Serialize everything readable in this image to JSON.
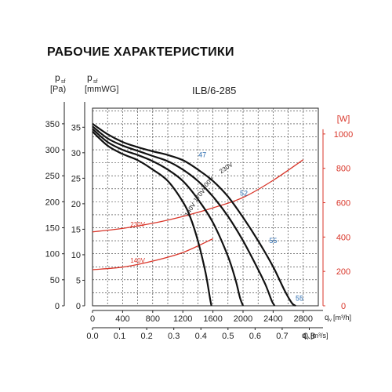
{
  "title": "РАБОЧИЕ ХАРАКТЕРИСТИКИ",
  "chart_data": {
    "type": "line",
    "model": "ILB/6-285",
    "left_axis_pa": {
      "label_main": "p",
      "label_sub": "sf",
      "unit": "[Pa)",
      "ticks": [
        0,
        50,
        100,
        150,
        200,
        250,
        300,
        350
      ],
      "range": [
        0,
        380
      ]
    },
    "left_axis_mmwg": {
      "label_main": "p",
      "label_sub": "sf",
      "unit": "[mmWG]",
      "ticks": [
        0,
        5,
        10,
        15,
        20,
        25,
        30,
        35
      ]
    },
    "right_axis_power": {
      "unit": "[W]",
      "ticks": [
        0,
        200,
        400,
        600,
        800,
        1000
      ],
      "range": [
        0,
        1000
      ]
    },
    "x_axis_m3h": {
      "label": "q",
      "label_sub": "v",
      "unit": "[m³/h]",
      "ticks": [
        0,
        400,
        800,
        1200,
        1600,
        2000,
        2400,
        2800
      ],
      "range": [
        0,
        3000
      ]
    },
    "x_axis_m3s": {
      "label": "q",
      "label_sub": "v",
      "unit": "[m³/s]",
      "ticks": [
        "0.0",
        "0.1",
        "0.2",
        "0.3",
        "0.4",
        "0.5",
        "0.6",
        "0.7",
        "0.8"
      ]
    },
    "grid": true,
    "pressure_curves": [
      {
        "name": "230V",
        "x": [
          0,
          200,
          400,
          600,
          800,
          1000,
          1200,
          1400,
          1600,
          1800,
          2000,
          2200,
          2400,
          2550,
          2650,
          2700
        ],
        "y": [
          350,
          330,
          315,
          305,
          297,
          290,
          280,
          262,
          240,
          210,
          170,
          125,
          75,
          30,
          5,
          0
        ]
      },
      {
        "name": "200V",
        "x": [
          0,
          200,
          400,
          600,
          800,
          1000,
          1200,
          1400,
          1600,
          1800,
          2000,
          2200,
          2300,
          2380,
          2420
        ],
        "y": [
          345,
          322,
          308,
          298,
          288,
          278,
          262,
          240,
          210,
          172,
          125,
          70,
          40,
          10,
          0
        ]
      },
      {
        "name": "170V",
        "x": [
          0,
          200,
          400,
          600,
          800,
          1000,
          1200,
          1400,
          1600,
          1800,
          1900,
          1960,
          2000
        ],
        "y": [
          340,
          315,
          300,
          290,
          278,
          262,
          240,
          205,
          160,
          95,
          50,
          15,
          0
        ]
      },
      {
        "name": "140V",
        "x": [
          0,
          200,
          400,
          600,
          800,
          1000,
          1200,
          1300,
          1400,
          1500,
          1560,
          1580
        ],
        "y": [
          335,
          308,
          292,
          280,
          262,
          240,
          200,
          170,
          125,
          65,
          15,
          0
        ]
      }
    ],
    "curve_labels": [
      {
        "text": "230V",
        "x": 1790,
        "y": 262,
        "angle": -35
      },
      {
        "text": "200V",
        "x": 1550,
        "y": 233,
        "angle": -45
      },
      {
        "text": "170V",
        "x": 1440,
        "y": 210,
        "angle": -52
      },
      {
        "text": "140V",
        "x": 1320,
        "y": 183,
        "angle": -58
      }
    ],
    "markers": [
      {
        "text": "47",
        "x": 1460,
        "y": 286
      },
      {
        "text": "52",
        "x": 2010,
        "y": 212
      },
      {
        "text": "55",
        "x": 2400,
        "y": 121
      },
      {
        "text": "55",
        "x": 2750,
        "y": 10
      }
    ],
    "power_curves": [
      {
        "name": "230V",
        "x": [
          0,
          400,
          800,
          1200,
          1600,
          2000,
          2400,
          2800
        ],
        "y": [
          430,
          450,
          480,
          520,
          570,
          630,
          730,
          850
        ],
        "label_x": 600,
        "label_y": 460
      },
      {
        "name": "140V",
        "x": [
          0,
          400,
          800,
          1200,
          1600
        ],
        "y": [
          210,
          225,
          260,
          310,
          390
        ],
        "label_x": 600,
        "label_y": 250
      }
    ],
    "colors": {
      "pressure": "#111111",
      "power": "#d9362a",
      "markers": "#2b6cb0",
      "grid": "#333333"
    }
  }
}
